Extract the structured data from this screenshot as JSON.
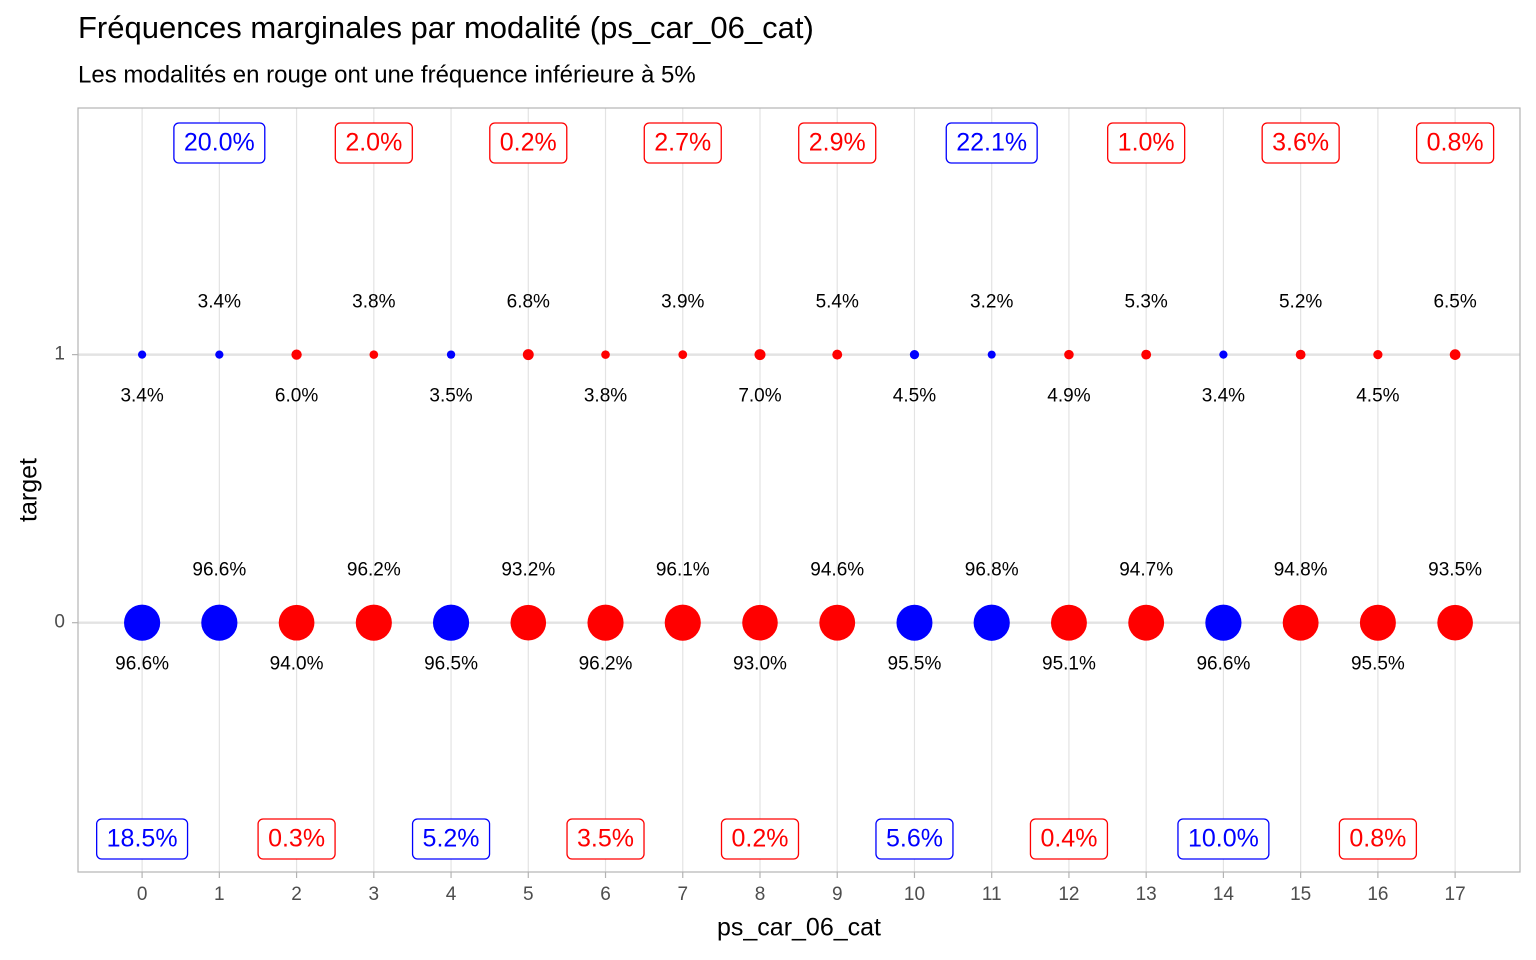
{
  "chart_data": {
    "type": "scatter",
    "title": "Fréquences marginales par modalité (ps_car_06_cat)",
    "subtitle": "Les modalités en rouge ont une fréquence inférieure à 5%",
    "x_label": "ps_car_06_cat",
    "y_label": "target",
    "x": [
      0,
      1,
      2,
      3,
      4,
      5,
      6,
      7,
      8,
      9,
      10,
      11,
      12,
      13,
      14,
      15,
      16,
      17
    ],
    "xlim": [
      -0.83,
      17.84
    ],
    "xticks": [
      0,
      1,
      2,
      3,
      4,
      5,
      6,
      7,
      8,
      9,
      10,
      11,
      12,
      13,
      14,
      15,
      16,
      17
    ],
    "ylim": [
      -0.93,
      1.92
    ],
    "yticks": [
      0,
      1
    ],
    "grid": true,
    "colors": [
      "#0000ff",
      "#0000ff",
      "#ff0000",
      "#ff0000",
      "#0000ff",
      "#ff0000",
      "#ff0000",
      "#ff0000",
      "#ff0000",
      "#ff0000",
      "#0000ff",
      "#0000ff",
      "#ff0000",
      "#ff0000",
      "#0000ff",
      "#ff0000",
      "#ff0000",
      "#ff0000"
    ],
    "rows": [
      {
        "y": 1,
        "values": [
          3.4,
          3.4,
          6.0,
          3.8,
          3.5,
          6.8,
          3.8,
          3.9,
          7.0,
          5.4,
          4.5,
          3.2,
          4.9,
          5.3,
          3.4,
          5.2,
          4.5,
          6.5
        ],
        "value_labels": [
          "3.4%",
          "3.4%",
          "6.0%",
          "3.8%",
          "3.5%",
          "6.8%",
          "3.8%",
          "3.9%",
          "7.0%",
          "5.4%",
          "4.5%",
          "3.2%",
          "4.9%",
          "5.3%",
          "3.4%",
          "5.2%",
          "4.5%",
          "6.5%"
        ]
      },
      {
        "y": 0,
        "values": [
          96.6,
          96.6,
          94.0,
          96.2,
          96.5,
          93.2,
          96.2,
          96.1,
          93.0,
          94.6,
          95.5,
          96.8,
          95.1,
          94.7,
          96.6,
          94.8,
          95.5,
          93.5
        ],
        "value_labels": [
          "96.6%",
          "96.6%",
          "94.0%",
          "96.2%",
          "96.5%",
          "93.2%",
          "96.2%",
          "96.1%",
          "93.0%",
          "94.6%",
          "95.5%",
          "96.8%",
          "95.1%",
          "94.7%",
          "96.6%",
          "94.8%",
          "95.5%",
          "93.5%"
        ]
      }
    ],
    "marginal": {
      "values": [
        18.5,
        20.0,
        0.3,
        2.0,
        5.2,
        0.2,
        3.5,
        2.7,
        0.2,
        2.9,
        5.6,
        22.1,
        0.4,
        1.0,
        10.0,
        3.6,
        0.8,
        0.8
      ],
      "value_labels": [
        "18.5%",
        "20.0%",
        "0.3%",
        "2.0%",
        "5.2%",
        "0.2%",
        "3.5%",
        "2.7%",
        "0.2%",
        "2.9%",
        "5.6%",
        "22.1%",
        "0.4%",
        "1.0%",
        "10.0%",
        "3.6%",
        "0.8%",
        "0.8%"
      ]
    }
  }
}
